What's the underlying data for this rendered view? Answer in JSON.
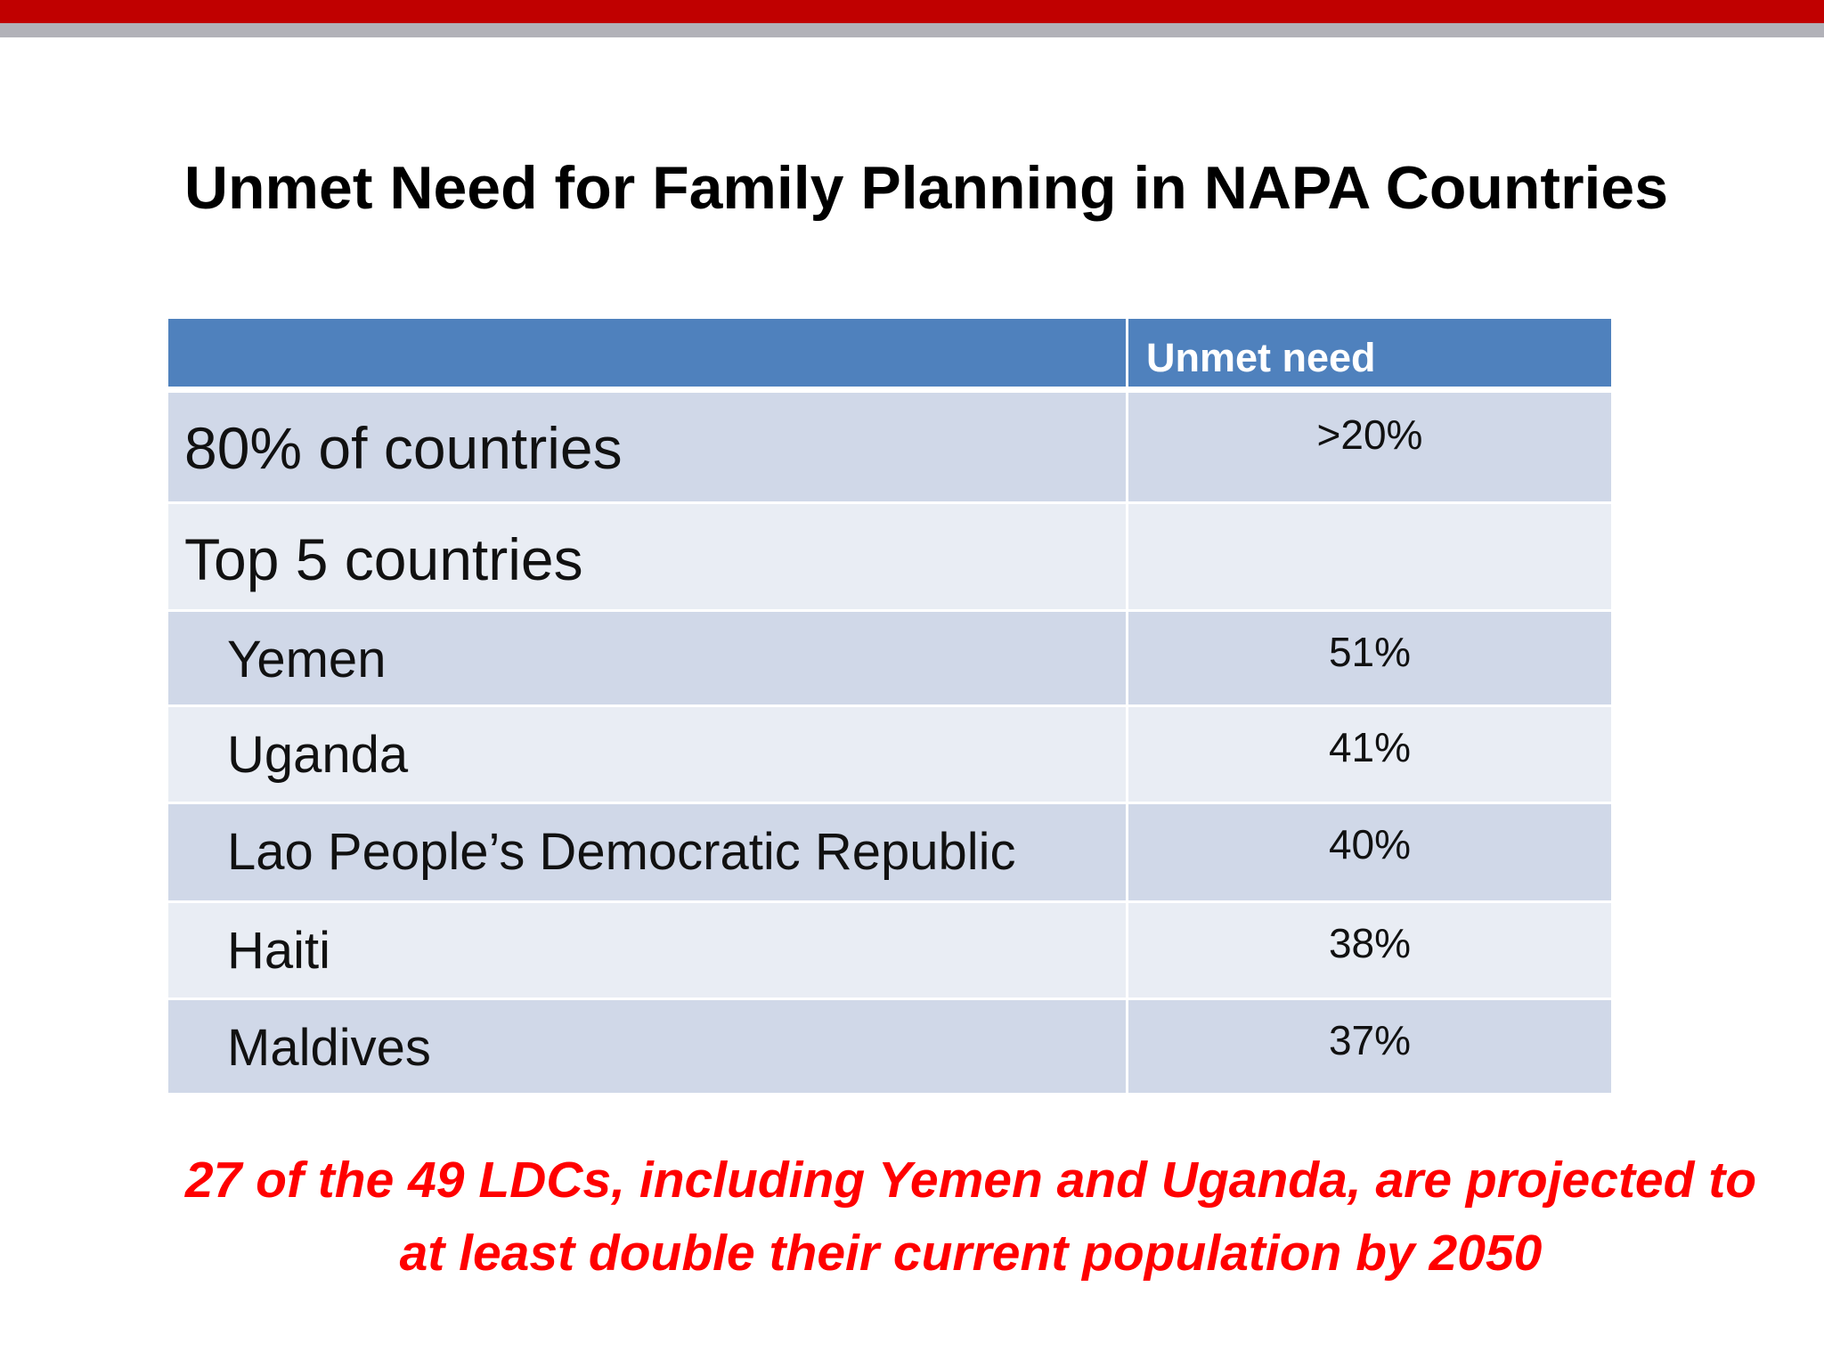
{
  "slide": {
    "title": "Unmet Need for Family Planning in NAPA Countries",
    "colors": {
      "top_bar": "#c00000",
      "top_bar_secondary": "#b1b1b8",
      "table_header": "#4f81bd",
      "row_dark": "#d0d8e8",
      "row_light": "#e9edf4",
      "footnote": "#ff0000"
    }
  },
  "table": {
    "header": {
      "label": "",
      "value": "Unmet need"
    },
    "rows": [
      {
        "label": "80% of countries",
        "value": ">20%"
      },
      {
        "label": "Top 5 countries",
        "value": ""
      },
      {
        "label": "Yemen",
        "value": "51%"
      },
      {
        "label": "Uganda",
        "value": "41%"
      },
      {
        "label": "Lao People’s Democratic Republic",
        "value": "40%"
      },
      {
        "label": "Haiti",
        "value": "38%"
      },
      {
        "label": "Maldives",
        "value": "37%"
      }
    ]
  },
  "footnote": {
    "line1": "27 of the 49 LDCs, including Yemen and Uganda, are projected to",
    "line2": "at least double their current population by 2050"
  }
}
